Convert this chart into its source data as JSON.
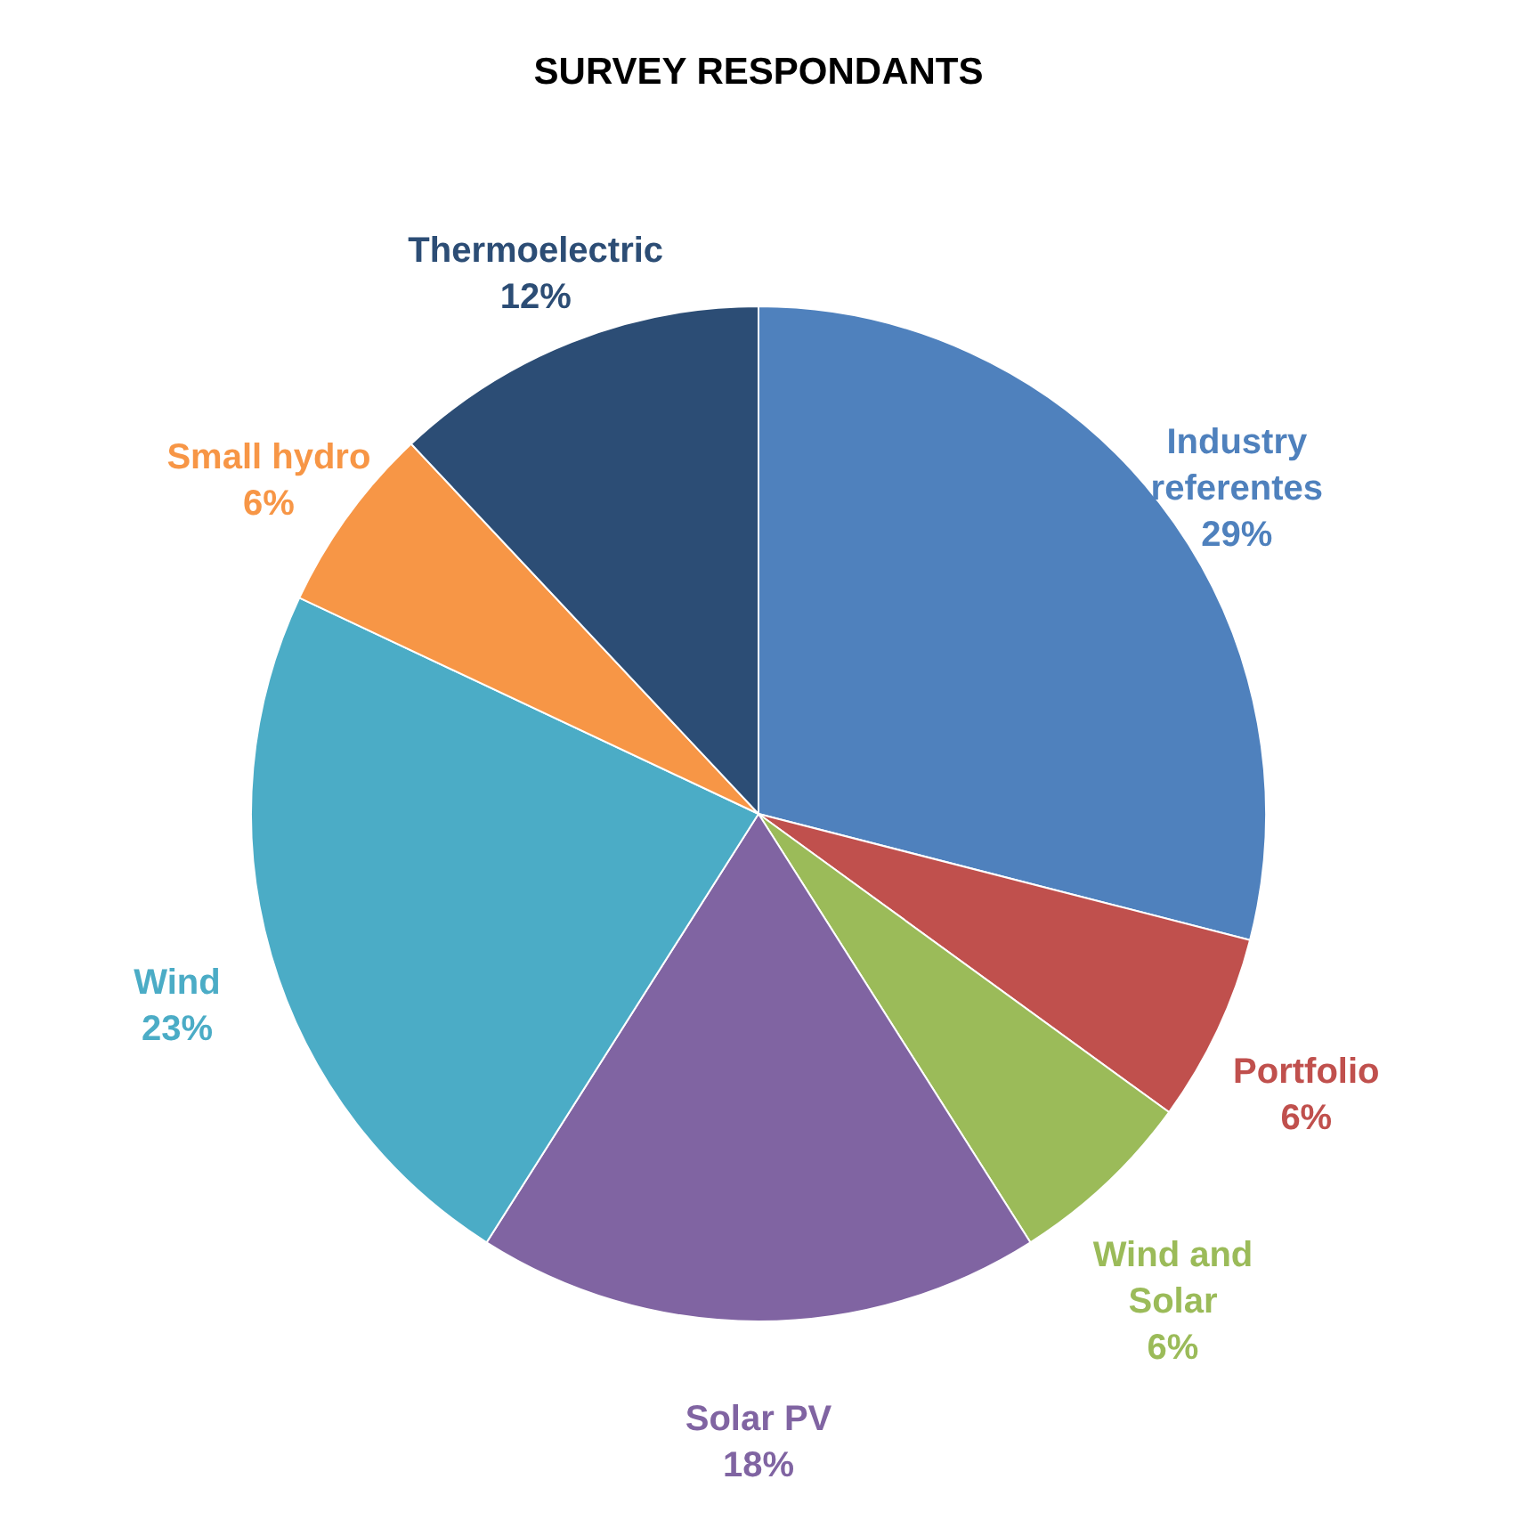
{
  "chart_data": {
    "type": "pie",
    "title": "SURVEY RESPONDANTS",
    "categories": [
      "Industry referentes",
      "Portfolio",
      "Wind and Solar",
      "Solar PV",
      "Wind",
      "Small hydro",
      "Thermoelectric"
    ],
    "values": [
      29,
      6,
      6,
      18,
      23,
      6,
      12
    ],
    "value_labels": [
      "29%",
      "6%",
      "6%",
      "18%",
      "23%",
      "6%",
      "12%"
    ],
    "colors": [
      "#4f81bd",
      "#c0504d",
      "#9bbb59",
      "#8064a2",
      "#4bacc6",
      "#f79646",
      "#2c4d75"
    ],
    "legend": false
  }
}
